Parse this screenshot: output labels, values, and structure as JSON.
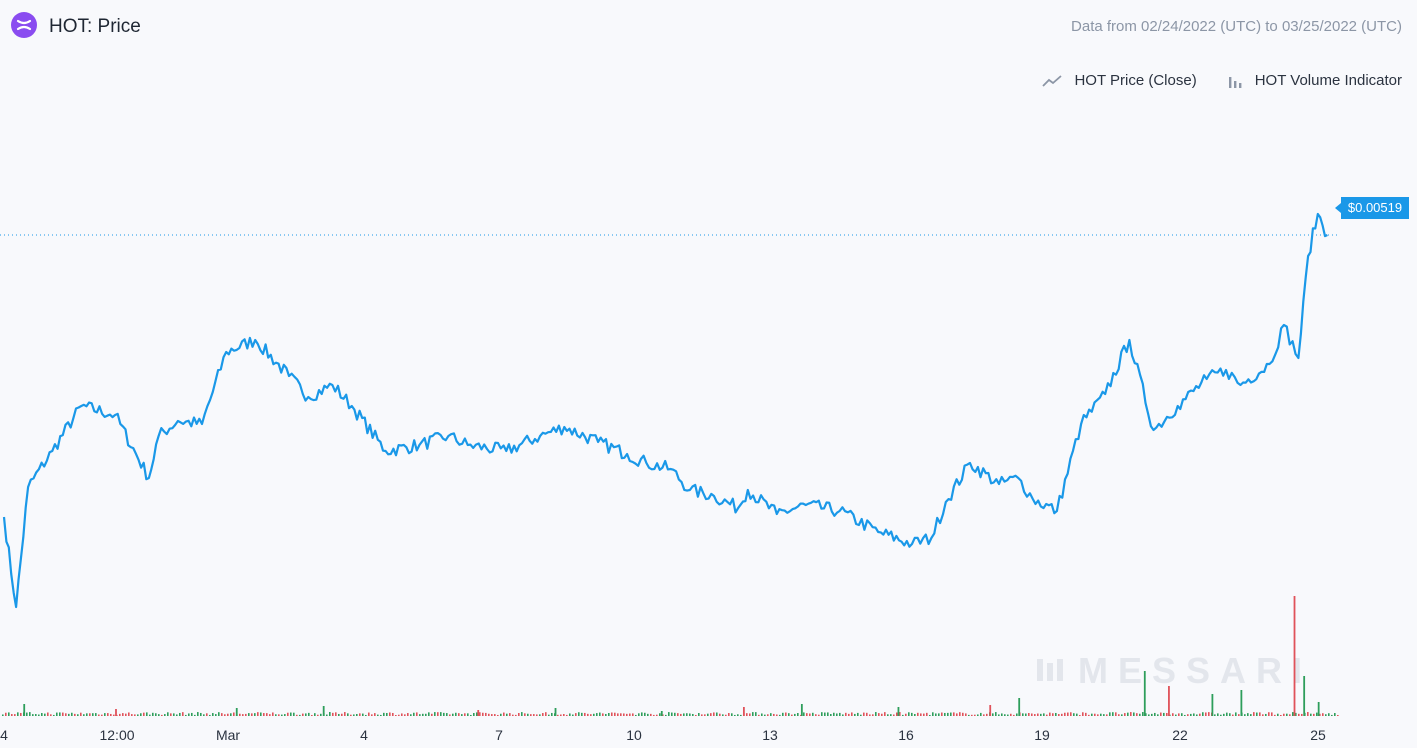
{
  "header": {
    "title": "HOT: Price",
    "date_range": "Data from 02/24/2022 (UTC) to 03/25/2022 (UTC)",
    "logo_icon": "holo-logo-icon"
  },
  "legend": [
    {
      "label": "HOT Price (Close)",
      "icon": "line-chart-icon"
    },
    {
      "label": "HOT Volume Indicator",
      "icon": "bar-chart-icon"
    }
  ],
  "watermark": "MESSARI",
  "current_price_label": "$0.00519",
  "colors": {
    "price_line": "#1a98e8",
    "volume_up": "#2e9e5b",
    "volume_down": "#e0525a",
    "background": "#f8f9fc"
  },
  "chart_data": {
    "type": "line",
    "x_tick_labels": [
      "4",
      "12:00",
      "Mar",
      "4",
      "7",
      "10",
      "13",
      "16",
      "19",
      "22",
      "25"
    ],
    "xlabel": "",
    "ylabel": "",
    "last_price": 0.00519,
    "series": [
      {
        "name": "HOT Price (Close)",
        "x_days": [
          0,
          0.25,
          0.5,
          1.0,
          1.6,
          2.3,
          3.0,
          3.2,
          3.6,
          4.1,
          4.6,
          5.2,
          5.9,
          6.3,
          6.8,
          7.2,
          7.9,
          8.6,
          9.2,
          9.6,
          10.4,
          11.1,
          11.6,
          12.3,
          12.9,
          13.3,
          13.8,
          14.2,
          14.7,
          15.2,
          15.4,
          16.0,
          16.6,
          17.3,
          18.1,
          18.8,
          19.2,
          19.5,
          20.0,
          20.6,
          21.0,
          21.3,
          21.8,
          22.3,
          22.8,
          23.3,
          23.8,
          24.3,
          24.9,
          25.3,
          25.6,
          26.2,
          26.5,
          26.8,
          27.0,
          27.2,
          27.4
        ],
        "values": [
          0.00425,
          0.00395,
          0.00435,
          0.00447,
          0.00462,
          0.00459,
          0.00438,
          0.00452,
          0.00457,
          0.00456,
          0.0048,
          0.00484,
          0.00472,
          0.00465,
          0.00469,
          0.00462,
          0.00447,
          0.00449,
          0.00452,
          0.00449,
          0.00447,
          0.00452,
          0.00455,
          0.0045,
          0.00446,
          0.00443,
          0.00441,
          0.00434,
          0.00432,
          0.00428,
          0.00434,
          0.00426,
          0.00429,
          0.00427,
          0.0042,
          0.00416,
          0.00418,
          0.0043,
          0.00443,
          0.00436,
          0.00438,
          0.00431,
          0.00427,
          0.00456,
          0.00466,
          0.00484,
          0.00454,
          0.00462,
          0.00471,
          0.00474,
          0.00469,
          0.00476,
          0.00489,
          0.00478,
          0.00512,
          0.00526,
          0.00519
        ]
      },
      {
        "name": "HOT Volume Indicator",
        "x_days": [
          0.4,
          2.3,
          4.8,
          6.6,
          9.8,
          11.4,
          13.6,
          15.3,
          16.5,
          18.5,
          20.4,
          21.0,
          23.6,
          24.1,
          25.0,
          25.6,
          26.7,
          26.9,
          27.2
        ],
        "values": [
          12,
          7,
          8,
          10,
          6,
          8,
          5,
          9,
          12,
          9,
          11,
          18,
          45,
          30,
          22,
          26,
          120,
          40,
          14
        ],
        "unit": "relative"
      }
    ]
  }
}
